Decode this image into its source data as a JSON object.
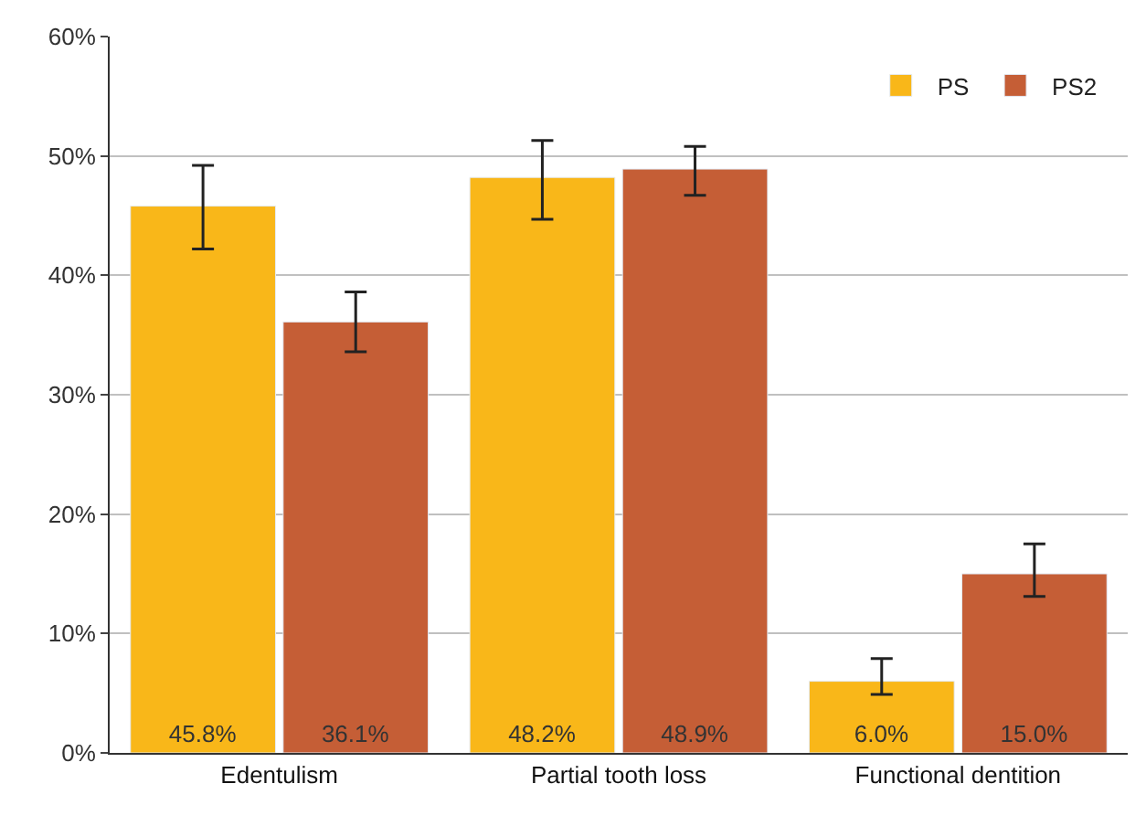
{
  "chart_data": {
    "type": "bar",
    "categories": [
      "Edentulism",
      "Partial tooth loss",
      "Functional dentition"
    ],
    "series": [
      {
        "name": "PS",
        "color": "#f9b719",
        "values": [
          45.8,
          48.2,
          6.0
        ],
        "value_labels": [
          "45.8%",
          "48.2%",
          "6.0%"
        ],
        "errors": [
          [
            42.2,
            49.2
          ],
          [
            44.7,
            51.3
          ],
          [
            4.9,
            7.9
          ]
        ]
      },
      {
        "name": "PS2",
        "color": "#c55e36",
        "values": [
          36.1,
          48.9,
          15.0
        ],
        "value_labels": [
          "36.1%",
          "48.9%",
          "15.0%"
        ],
        "errors": [
          [
            33.6,
            38.6
          ],
          [
            46.7,
            50.8
          ],
          [
            13.1,
            17.5
          ]
        ]
      }
    ],
    "ylim": [
      0,
      60
    ],
    "yticks": [
      {
        "value": 0,
        "label": "0%"
      },
      {
        "value": 10,
        "label": "10%"
      },
      {
        "value": 20,
        "label": "20%"
      },
      {
        "value": 30,
        "label": "30%"
      },
      {
        "value": 40,
        "label": "40%"
      },
      {
        "value": 50,
        "label": "50%"
      },
      {
        "value": 60,
        "label": "60%"
      }
    ],
    "grid": "y",
    "legend": "top right"
  }
}
